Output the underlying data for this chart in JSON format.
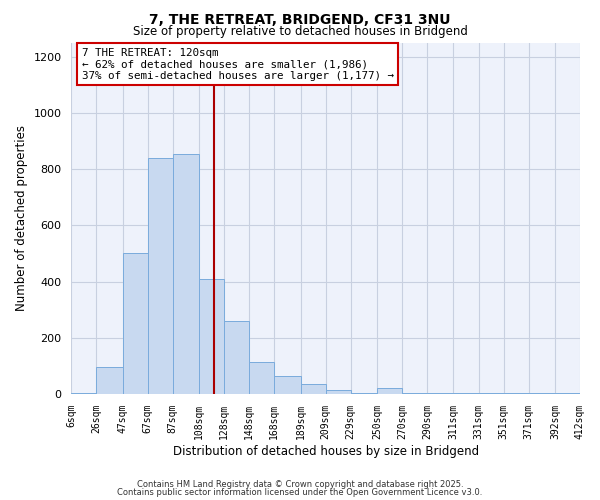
{
  "title": "7, THE RETREAT, BRIDGEND, CF31 3NU",
  "subtitle": "Size of property relative to detached houses in Bridgend",
  "xlabel": "Distribution of detached houses by size in Bridgend",
  "ylabel": "Number of detached properties",
  "bar_color": "#c8d9f0",
  "bar_edge_color": "#7aabdc",
  "vline_x": 120,
  "vline_color": "#aa0000",
  "annotation_title": "7 THE RETREAT: 120sqm",
  "annotation_line1": "← 62% of detached houses are smaller (1,986)",
  "annotation_line2": "37% of semi-detached houses are larger (1,177) →",
  "annotation_box_color": "#ffffff",
  "annotation_box_edge": "#cc0000",
  "bins": [
    6,
    26,
    47,
    67,
    87,
    108,
    128,
    148,
    168,
    189,
    209,
    229,
    250,
    270,
    290,
    311,
    331,
    351,
    371,
    392,
    412
  ],
  "counts": [
    5,
    95,
    500,
    840,
    855,
    410,
    260,
    115,
    65,
    35,
    15,
    5,
    20,
    5,
    5,
    5,
    3,
    2,
    5,
    2
  ],
  "ylim": [
    0,
    1250
  ],
  "yticks": [
    0,
    200,
    400,
    600,
    800,
    1000,
    1200
  ],
  "footer1": "Contains HM Land Registry data © Crown copyright and database right 2025.",
  "footer2": "Contains public sector information licensed under the Open Government Licence v3.0.",
  "background_color": "#ffffff",
  "plot_bg_color": "#eef2fb",
  "grid_color": "#c8d0e0"
}
